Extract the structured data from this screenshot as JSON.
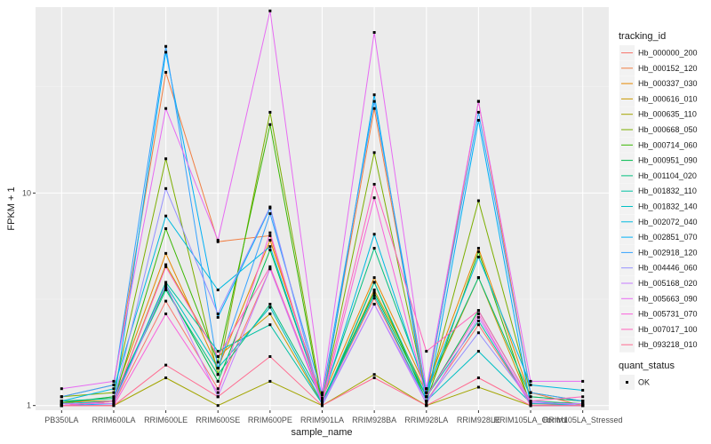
{
  "chart_data": {
    "type": "line",
    "xlabel": "sample_name",
    "ylabel": "FPKM + 1",
    "y_scale": "log10",
    "ylim": [
      0.95,
      75
    ],
    "y_ticks": [
      1,
      10
    ],
    "grid": true,
    "legend_placement": "right",
    "categories": [
      "PB350LA",
      "RRIM600LA",
      "RRIM600LE",
      "RRIM600SE",
      "RRIM600PE",
      "RRIM901LA",
      "RRIM928BA",
      "RRIM928LA",
      "RRIM928LE",
      "RRIM105LA_Control",
      "RRIM105LA_Stressed"
    ],
    "legend_title": "tracking_id",
    "series": [
      {
        "name": "Hb_000000_200",
        "color": "#F8766D",
        "values": [
          1.05,
          1.02,
          3.1,
          1.2,
          4.4,
          1.03,
          3.2,
          1.05,
          2.4,
          1.02,
          1.0
        ]
      },
      {
        "name": "Hb_000152_120",
        "color": "#F07E42",
        "values": [
          1.1,
          1.25,
          37.0,
          5.9,
          6.3,
          1.05,
          25.0,
          1.1,
          27.0,
          1.15,
          1.0
        ]
      },
      {
        "name": "Hb_000337_030",
        "color": "#E58700",
        "values": [
          1.02,
          1.1,
          5.2,
          1.5,
          6.0,
          1.08,
          4.0,
          1.2,
          5.5,
          1.1,
          1.05
        ]
      },
      {
        "name": "Hb_000616_010",
        "color": "#C99800",
        "values": [
          1.05,
          1.05,
          4.6,
          1.7,
          2.7,
          1.02,
          3.5,
          1.15,
          4.0,
          1.02,
          1.02
        ]
      },
      {
        "name": "Hb_000635_110",
        "color": "#A3A500",
        "values": [
          1.0,
          1.0,
          1.35,
          1.0,
          1.3,
          1.0,
          1.4,
          1.0,
          1.22,
          1.0,
          1.0
        ]
      },
      {
        "name": "Hb_000668_050",
        "color": "#7CAE00",
        "values": [
          1.1,
          1.15,
          14.5,
          1.4,
          24.0,
          1.05,
          15.5,
          1.1,
          9.2,
          1.15,
          1.05
        ]
      },
      {
        "name": "Hb_000714_060",
        "color": "#39B600",
        "values": [
          1.0,
          1.05,
          6.8,
          1.6,
          21.0,
          1.0,
          3.8,
          1.05,
          5.3,
          1.0,
          1.0
        ]
      },
      {
        "name": "Hb_000951_090",
        "color": "#00BB4E",
        "values": [
          1.03,
          1.1,
          3.6,
          1.3,
          5.4,
          1.05,
          3.4,
          1.1,
          2.8,
          1.05,
          1.02
        ]
      },
      {
        "name": "Hb_001104_020",
        "color": "#00BF7D",
        "values": [
          1.05,
          1.08,
          3.5,
          1.4,
          3.0,
          1.08,
          5.5,
          1.2,
          4.0,
          1.1,
          1.05
        ]
      },
      {
        "name": "Hb_001832_110",
        "color": "#00C1A3",
        "values": [
          1.0,
          1.05,
          3.8,
          1.8,
          2.4,
          1.02,
          3.8,
          1.1,
          2.5,
          1.02,
          1.02
        ]
      },
      {
        "name": "Hb_001832_140",
        "color": "#00BFC4",
        "values": [
          1.02,
          1.05,
          3.7,
          1.5,
          2.9,
          1.03,
          3.3,
          1.05,
          1.8,
          1.03,
          1.0
        ]
      },
      {
        "name": "Hb_002072_040",
        "color": "#00BAE0",
        "values": [
          1.05,
          1.2,
          7.8,
          3.5,
          5.6,
          1.05,
          6.4,
          1.15,
          5.0,
          1.25,
          1.18
        ]
      },
      {
        "name": "Hb_002851_070",
        "color": "#00B0F6",
        "values": [
          1.0,
          1.02,
          46.0,
          2.6,
          8.5,
          1.0,
          29.0,
          1.0,
          22.0,
          1.0,
          1.0
        ]
      },
      {
        "name": "Hb_002918_120",
        "color": "#35A2FF",
        "values": [
          1.1,
          1.25,
          49.0,
          1.5,
          8.0,
          1.12,
          27.0,
          1.15,
          24.0,
          1.15,
          1.05
        ]
      },
      {
        "name": "Hb_004446_060",
        "color": "#9590FF",
        "values": [
          1.0,
          1.05,
          10.5,
          2.7,
          8.6,
          1.0,
          3.0,
          1.05,
          2.2,
          1.05,
          1.0
        ]
      },
      {
        "name": "Hb_005168_020",
        "color": "#C77CFF",
        "values": [
          1.02,
          1.02,
          3.7,
          1.1,
          4.4,
          1.02,
          3.0,
          1.02,
          2.6,
          1.03,
          1.02
        ]
      },
      {
        "name": "Hb_005663_090",
        "color": "#E76BF3",
        "values": [
          1.2,
          1.3,
          25.0,
          6.0,
          72.0,
          1.15,
          57.0,
          1.2,
          27.0,
          1.3,
          1.3
        ]
      },
      {
        "name": "Hb_005731_070",
        "color": "#FA62DB",
        "values": [
          1.0,
          1.0,
          2.7,
          1.15,
          6.5,
          1.02,
          9.5,
          1.1,
          2.7,
          1.0,
          1.0
        ]
      },
      {
        "name": "Hb_007017_100",
        "color": "#FF62BC",
        "values": [
          1.0,
          1.05,
          4.5,
          1.7,
          4.5,
          1.05,
          11.0,
          1.8,
          2.8,
          1.05,
          1.1
        ]
      },
      {
        "name": "Hb_093218_010",
        "color": "#FF6C91",
        "values": [
          1.0,
          1.0,
          1.55,
          1.1,
          1.7,
          1.0,
          1.35,
          1.0,
          1.35,
          1.0,
          1.0
        ]
      }
    ],
    "extra_legend": {
      "title": "quant_status",
      "items": [
        {
          "label": "OK",
          "symbol": "square",
          "color": "#000000"
        }
      ]
    },
    "style": {
      "panel_bg": "#EBEBEB",
      "grid_major": "#FFFFFF",
      "grid_minor": "#F5F5F5",
      "point_color": "#000000"
    }
  }
}
